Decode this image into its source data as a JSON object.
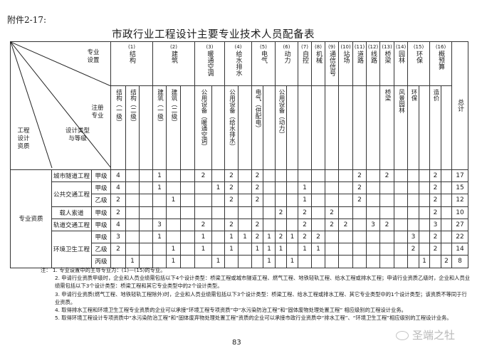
{
  "attachment_label": "附件2-17:",
  "title": "市政行业工程设计主要专业技术人员配备表",
  "corner_labels": {
    "specialty_setting": "专业设置",
    "registered_specialty": "注册专业",
    "qualification": "工程设计资质",
    "design_type_grade": "设计类型与等级"
  },
  "groups": [
    {
      "num": "(1)",
      "label": "结构",
      "subs": [
        "结构（一级）",
        "结构（二级）",
        ""
      ]
    },
    {
      "num": "(2)",
      "label": "建筑",
      "subs": [
        "建筑（一级）",
        "建筑（二级）",
        ""
      ]
    },
    {
      "num": "(3)",
      "label": "暖通空调",
      "subs": [
        "公用设备（暖通空调）",
        ""
      ]
    },
    {
      "num": "(4)",
      "label": "给水排水",
      "subs": [
        "公用设备（给水排水）",
        ""
      ]
    },
    {
      "num": "(5)",
      "label": "电气",
      "subs": [
        "电气（供配电）",
        ""
      ]
    },
    {
      "num": "(6)",
      "label": "动力",
      "subs": [
        "公用设备（动力）",
        ""
      ]
    },
    {
      "num": "(7)",
      "label": "自控",
      "subs": [
        ""
      ]
    },
    {
      "num": "(8)",
      "label": "机械",
      "subs": [
        ""
      ]
    },
    {
      "num": "(9)",
      "label": "通信信号",
      "subs": [
        ""
      ]
    },
    {
      "num": "(10)",
      "label": "站场",
      "subs": [
        ""
      ]
    },
    {
      "num": "(11)",
      "label": "道路",
      "subs": [
        ""
      ]
    },
    {
      "num": "(12)",
      "label": "线路",
      "subs": [
        ""
      ]
    },
    {
      "num": "(13)",
      "label": "桥梁",
      "subs": [
        "桥梁"
      ]
    },
    {
      "num": "(14)",
      "label": "园林",
      "subs": [
        "风景园林"
      ]
    },
    {
      "num": "(15)",
      "label": "环保",
      "subs": [
        "环保",
        ""
      ]
    },
    {
      "num": "(16)",
      "label": "概预算",
      "subs": [
        "造价",
        ""
      ]
    }
  ],
  "total_label": "总计",
  "qualification_label": "专业资质",
  "rows": [
    {
      "type": "城市隧道工程",
      "grade": "甲级",
      "values": [
        "4",
        "",
        "",
        "1",
        "",
        "",
        "2",
        "",
        "2",
        "",
        "2",
        "",
        "",
        "",
        "",
        "",
        "",
        "",
        "2",
        "",
        "2",
        "",
        "",
        "",
        "2",
        ""
      ],
      "total": "17"
    },
    {
      "type": "公共交通工程",
      "grade": "甲级",
      "values": [
        "4",
        "",
        "",
        "1",
        "",
        "",
        "",
        "1",
        "2",
        "",
        "2",
        "",
        "",
        "",
        "1",
        "",
        "",
        "",
        "2",
        "",
        "",
        "",
        "",
        "",
        "2",
        ""
      ],
      "total": "15"
    },
    {
      "type": "",
      "grade": "乙级",
      "values": [
        "2",
        "",
        "",
        "",
        "1",
        "",
        "",
        "",
        "2",
        "",
        "2",
        "",
        "",
        "",
        "1",
        "",
        "",
        "",
        "2",
        "",
        "",
        "",
        "",
        "",
        "2",
        ""
      ],
      "total": "12"
    },
    {
      "type": "载人索道",
      "grade": "甲级",
      "values": [
        "2",
        "",
        "",
        "",
        "",
        "",
        "",
        "",
        "",
        "",
        "",
        "",
        "2",
        "",
        "2",
        "",
        "2",
        "",
        "",
        "",
        "",
        "",
        "",
        "",
        "2",
        ""
      ],
      "total": "10"
    },
    {
      "type": "轨道交通工程",
      "grade": "甲级",
      "values": [
        "4",
        "",
        "",
        "3",
        "",
        "",
        "2",
        "",
        "2",
        "",
        "2",
        "",
        "",
        "",
        "2",
        "",
        "2",
        "2",
        "",
        "3",
        "2",
        "",
        "",
        "",
        "3",
        ""
      ],
      "total": "27"
    },
    {
      "type": "环境卫生工程",
      "grade": "甲级",
      "values": [
        "3",
        "",
        "",
        "1",
        "",
        "",
        "1",
        "",
        "1",
        "1",
        "2",
        "1",
        "2",
        "1",
        "2",
        "2",
        "",
        "",
        "",
        "",
        "",
        "",
        "3",
        "",
        "2",
        ""
      ],
      "total": "22"
    },
    {
      "type": "",
      "grade": "乙级",
      "values": [
        "2",
        "",
        "",
        "",
        "1",
        "",
        "1",
        "",
        "1",
        "",
        "1",
        "1",
        "1",
        "",
        "1",
        "1",
        "",
        "",
        "",
        "",
        "",
        "",
        "2",
        "",
        "2",
        ""
      ],
      "total": "14"
    },
    {
      "type": "",
      "grade": "丙级",
      "values": [
        "",
        "1",
        "",
        "",
        "1",
        "",
        "",
        "1",
        "",
        "",
        "",
        "1",
        "",
        "1",
        "",
        "",
        "",
        "",
        "",
        "",
        "",
        "",
        "",
        "1",
        "",
        "2"
      ],
      "total": "8"
    }
  ],
  "notes": [
    "注： 1. 专业设置中的主导专业为：(1)—(15)的专业。",
    "2. 申请行业资质甲级时，企业和人员业绩需包括以下4个设计类型：桥梁工程或城市隧道工程、燃气工程、地铁轻轨工程、给水工程或排水工程；申请行业资质乙级时，企业和人员业绩需包括以下3个设计类型：桥梁工程和其它专业类型中的2个设计类型。",
    "3. 申请行业资质(燃气工程、地铁轻轨工程除外)时，企业和人员业绩需包括以下3个设计类型：桥梁工程、给水工程或排水工程、其它专业类型中的1个设计类型；该资质不等同于行业资质。",
    "4. 取得排水工程和环境卫生工程专业资质的企业可以承接“环境工程专项资质”中“水污染防治工程”和“固体废物处理处置工程” 相应级别的工程设计业务。",
    "5. 取得环境工程设计专项资质中“水污染防治工程”和“固体废弃物处理处置工程”资质的企业可以承接市政行业资质中“排水工程”、“环境卫生工程”相应级别的工程设计业务。"
  ],
  "page_number": "83",
  "watermark": "圣端之牡"
}
